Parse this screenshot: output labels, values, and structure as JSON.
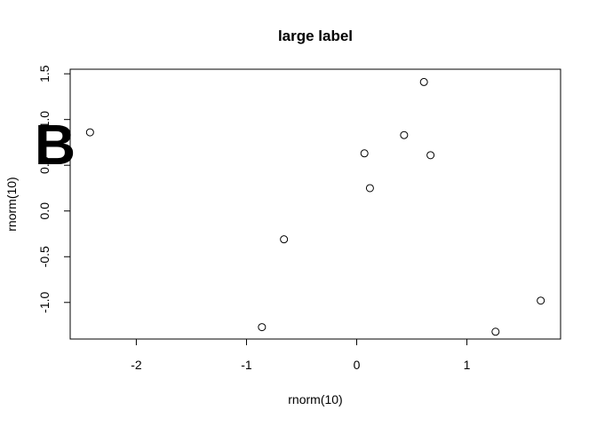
{
  "chart_data": {
    "type": "scatter",
    "title": "large label",
    "panel_label": "B",
    "xlabel": "rnorm(10)",
    "ylabel": "rnorm(10)",
    "xlim": [
      -2.6,
      1.85
    ],
    "ylim": [
      -1.4,
      1.55
    ],
    "xticks": [
      -2,
      -1,
      0,
      1
    ],
    "yticks": [
      -1.0,
      -0.5,
      0.0,
      0.5,
      1.0,
      1.5
    ],
    "xtick_labels": [
      "-2",
      "-1",
      "0",
      "1"
    ],
    "ytick_labels": [
      "-1.0",
      "-0.5",
      "0.0",
      "0.5",
      "1.0",
      "1.5"
    ],
    "grid": false,
    "points": [
      {
        "x": -2.42,
        "y": 0.86
      },
      {
        "x": -0.86,
        "y": -1.27
      },
      {
        "x": -0.66,
        "y": -0.31
      },
      {
        "x": 0.07,
        "y": 0.63
      },
      {
        "x": 0.12,
        "y": 0.25
      },
      {
        "x": 0.43,
        "y": 0.83
      },
      {
        "x": 0.61,
        "y": 1.41
      },
      {
        "x": 0.67,
        "y": 0.61
      },
      {
        "x": 1.26,
        "y": -1.32
      },
      {
        "x": 1.67,
        "y": -0.98
      }
    ]
  }
}
